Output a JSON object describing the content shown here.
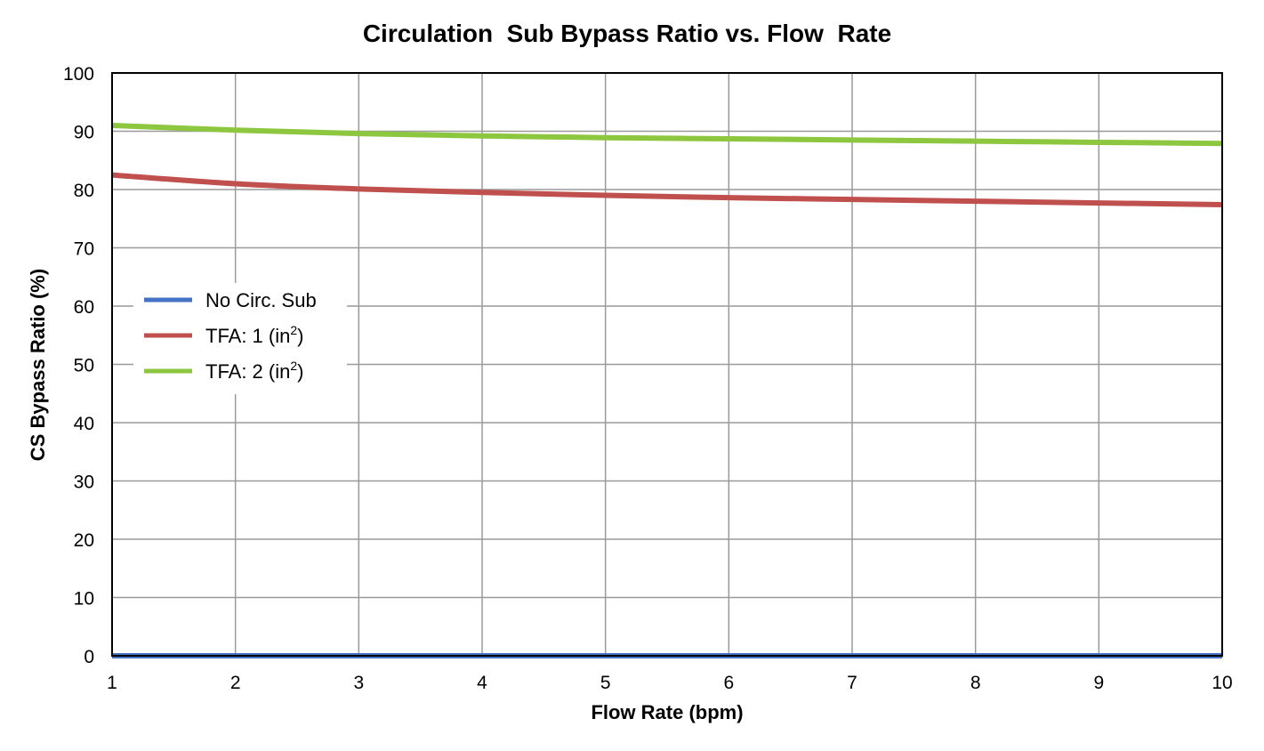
{
  "chart_data": {
    "type": "line",
    "title": "Circulation  Sub Bypass Ratio vs. Flow  Rate",
    "xlabel": "Flow Rate (bpm)",
    "ylabel": "CS Bypass Ratio (%)",
    "xlim": [
      1,
      10
    ],
    "ylim": [
      0,
      100
    ],
    "xticks": [
      1,
      2,
      3,
      4,
      5,
      6,
      7,
      8,
      9,
      10
    ],
    "yticks": [
      0,
      10,
      20,
      30,
      40,
      50,
      60,
      70,
      80,
      90,
      100
    ],
    "grid": true,
    "legend_position": "left",
    "x": [
      1,
      2,
      3,
      4,
      5,
      6,
      7,
      8,
      9,
      10
    ],
    "series": [
      {
        "name": "No Circ. Sub",
        "color": "#4472C4",
        "values": [
          0,
          0,
          0,
          0,
          0,
          0,
          0,
          0,
          0,
          0
        ]
      },
      {
        "name": "TFA: 1 (in",
        "name_sup": "2",
        "name_suffix": ")",
        "color": "#C0504D",
        "values": [
          82.5,
          81.0,
          80.1,
          79.5,
          79.0,
          78.6,
          78.3,
          78.0,
          77.7,
          77.4
        ]
      },
      {
        "name": "TFA: 2 (in",
        "name_sup": "2",
        "name_suffix": ")",
        "color": "#8DC63F",
        "values": [
          91.0,
          90.2,
          89.6,
          89.2,
          88.9,
          88.7,
          88.5,
          88.3,
          88.1,
          87.9
        ]
      }
    ]
  }
}
